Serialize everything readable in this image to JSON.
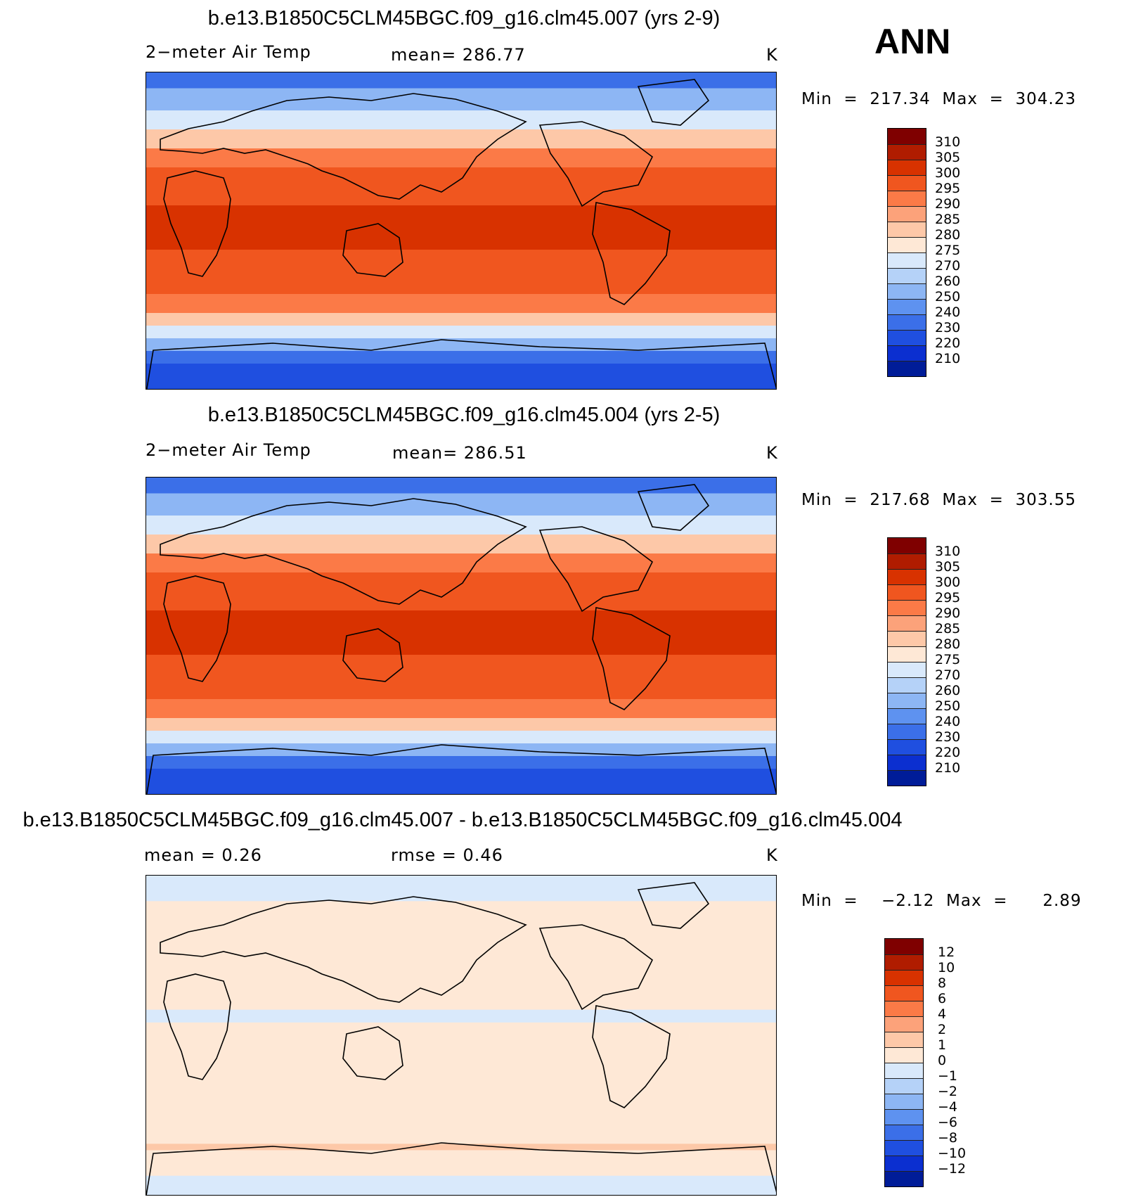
{
  "season": "ANN",
  "panels": [
    {
      "title": "b.e13.B1850C5CLM45BGC.f09_g16.clm45.007 (yrs 2-9)",
      "left_label": "2−meter Air Temp",
      "center_label": "mean=  286.77",
      "units": "K",
      "minmax": "Min  =  217.34  Max  =  304.23",
      "colorbar_labels": [
        "310",
        "305",
        "300",
        "295",
        "290",
        "285",
        "280",
        "275",
        "270",
        "260",
        "250",
        "240",
        "230",
        "220",
        "210"
      ],
      "kind": "abs"
    },
    {
      "title": "b.e13.B1850C5CLM45BGC.f09_g16.clm45.004 (yrs 2-5)",
      "left_label": "2−meter Air Temp",
      "center_label": "mean=  286.51",
      "units": "K",
      "minmax": "Min  =  217.68  Max  =  303.55",
      "colorbar_labels": [
        "310",
        "305",
        "300",
        "295",
        "290",
        "285",
        "280",
        "275",
        "270",
        "260",
        "250",
        "240",
        "230",
        "220",
        "210"
      ],
      "kind": "abs"
    },
    {
      "title": "b.e13.B1850C5CLM45BGC.f09_g16.clm45.007 - b.e13.B1850C5CLM45BGC.f09_g16.clm45.004",
      "left_label": "mean =     0.26",
      "center_label": "rmse =     0.46",
      "units": "K",
      "minmax": "Min  =    −2.12  Max  =      2.89",
      "colorbar_labels": [
        "12",
        "10",
        "8",
        "6",
        "4",
        "2",
        "1",
        "0",
        "−1",
        "−2",
        "−4",
        "−6",
        "−8",
        "−10",
        "−12"
      ],
      "kind": "diff"
    }
  ],
  "colorbar_colors": [
    "#7f0000",
    "#b01c00",
    "#d83200",
    "#f0561f",
    "#fb7a47",
    "#fca27a",
    "#fdc8a8",
    "#fee8d6",
    "#d9e9fb",
    "#b5d2f8",
    "#8db6f4",
    "#5e92f0",
    "#3b6fe8",
    "#1f4fe0",
    "#0b2fd0",
    "#001c98"
  ]
}
